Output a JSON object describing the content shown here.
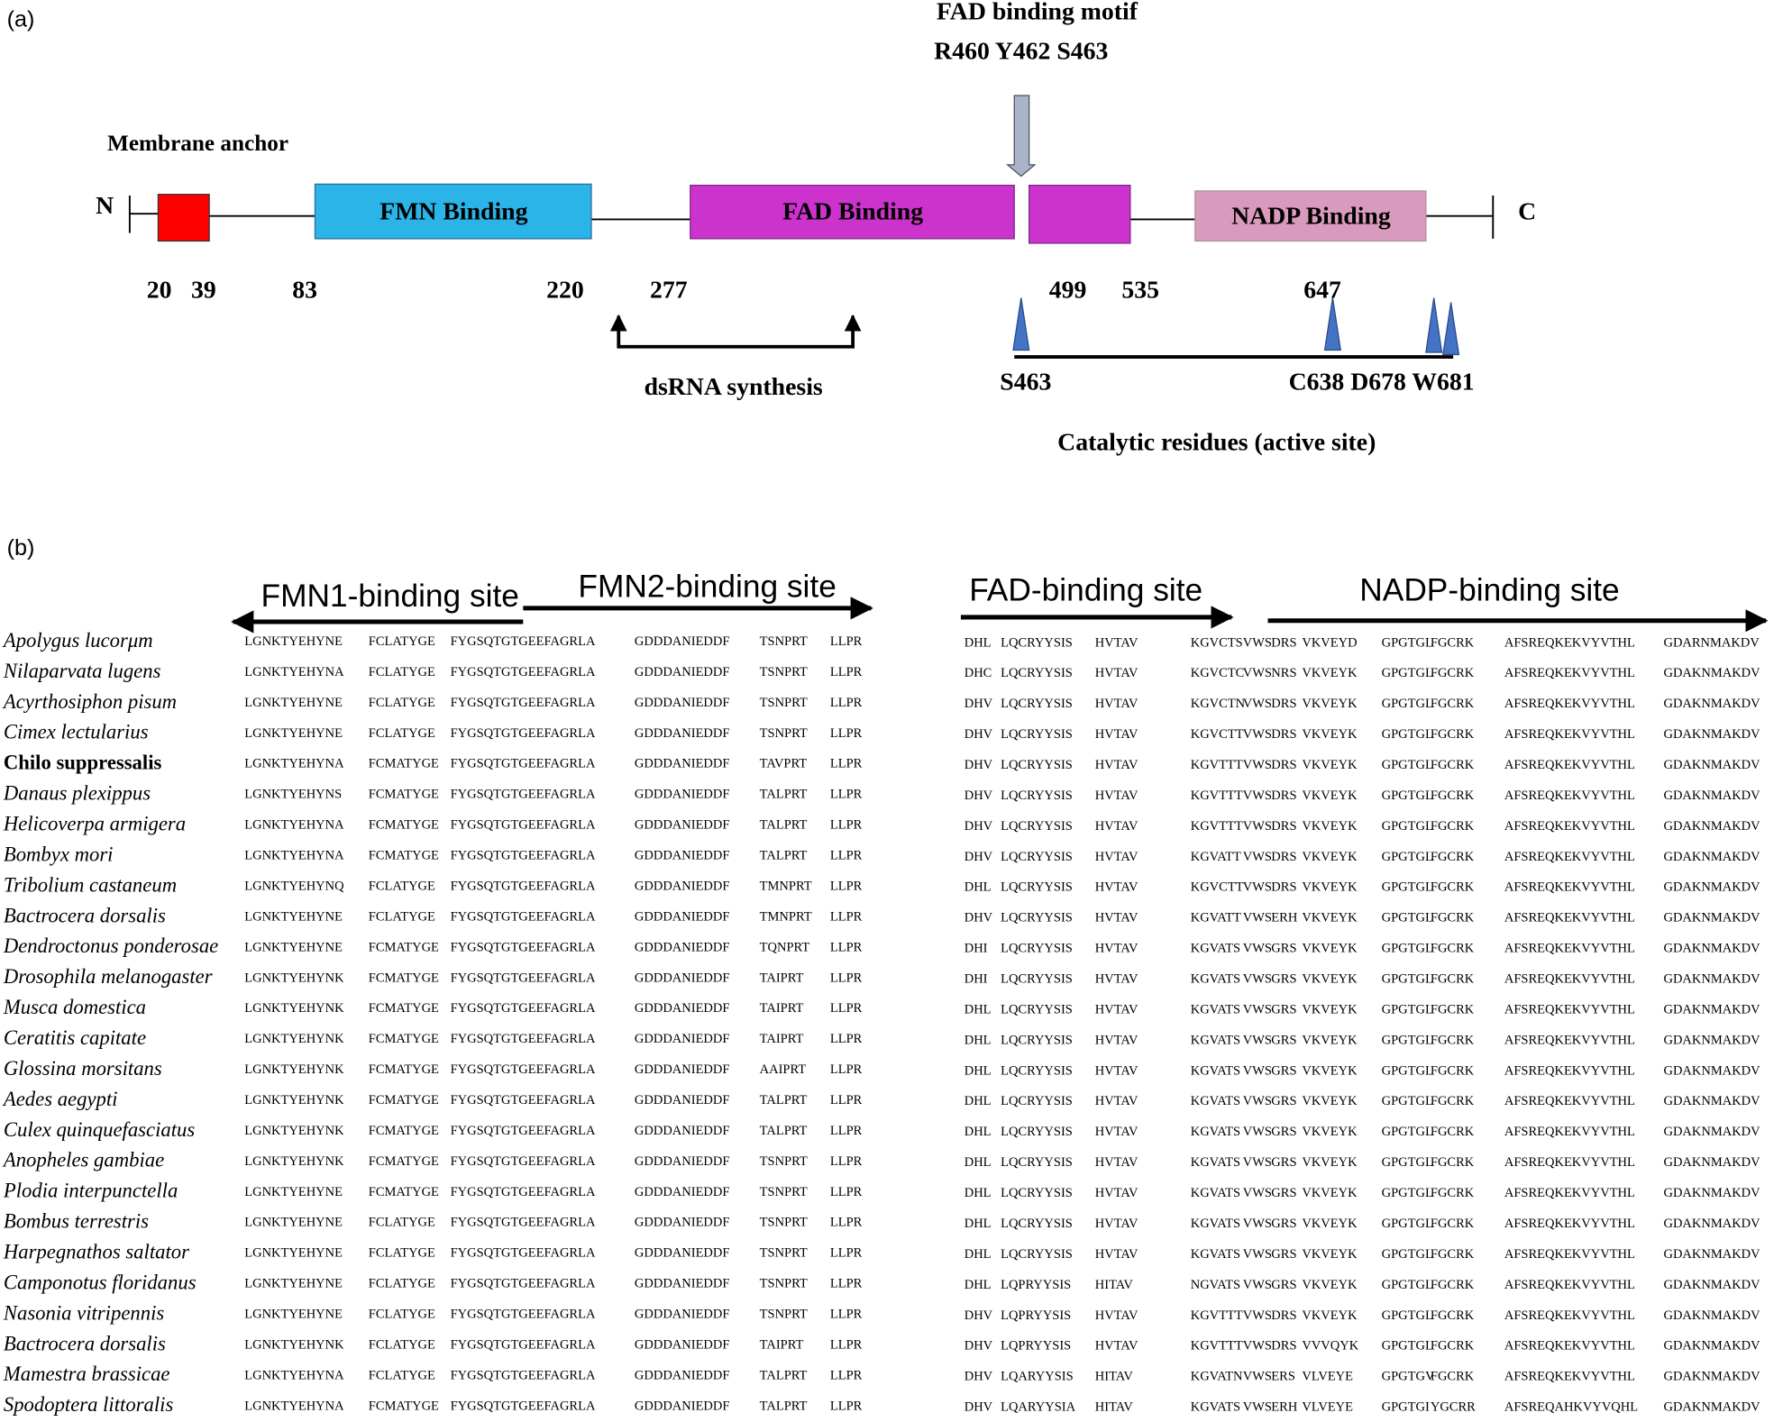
{
  "panel_a": {
    "label": "(a)",
    "motif_title": "FAD binding motif",
    "motif_residues": "R460 Y462 S463",
    "membrane_anchor": "Membrane anchor",
    "n_terminus": "N",
    "c_terminus": "C",
    "domains": [
      "FMN Binding",
      "FAD Binding",
      "NADP Binding"
    ],
    "positions": [
      20,
      39,
      83,
      220,
      277,
      499,
      535,
      647
    ],
    "dsrna": "dsRNA synthesis",
    "residue_s463": "S463",
    "residues_other": "C638 D678 W681",
    "catalytic": "Catalytic residues (active site)"
  },
  "panel_b": {
    "label": "(b)",
    "sites": [
      "FMN1-binding site",
      "FMN2-binding site",
      "FAD-binding site",
      "NADP-binding site"
    ],
    "rows": [
      {
        "species": "Apolygus lucorμm",
        "left": [
          "LGNKTYEHYNE",
          "FCLATYGE",
          "FYGSQTGTGEEFAGRLA",
          "GDDDANIEDDF",
          "TSNPRT",
          "LLPR"
        ],
        "right": [
          "DHL",
          "LQCRYYSIS",
          "HVTAV",
          "KGVCTS",
          "VWS",
          "DRS",
          "VKVEYD",
          "GPGTGL",
          "FGCRK",
          "AFSREQKEKVYVTHL",
          "GDARNMAKDV"
        ]
      },
      {
        "species": "Nilaparvata lugens",
        "left": [
          "LGNKTYEHYNA",
          "FCLATYGE",
          "FYGSQTGTGEEFAGRLA",
          "GDDDANIEDDF",
          "TSNPRT",
          "LLPR"
        ],
        "right": [
          "DHC",
          "LQCRYYSIS",
          "HVTAV",
          "KGVCTC",
          "VWS",
          "NRS",
          "VKVEYK",
          "GPGTGL",
          "FGCRK",
          "AFSREQKEKVYVTHL",
          "GDAKNMAKDV"
        ]
      },
      {
        "species": "Acyrthosiphon pisum",
        "left": [
          "LGNKTYEHYNE",
          "FCLATYGE",
          "FYGSQTGTGEEFAGRLA",
          "GDDDANIEDDF",
          "TSNPRT",
          "LLPR"
        ],
        "right": [
          "DHV",
          "LQCRYYSIS",
          "HVTAV",
          "KGVCTN",
          "VWS",
          "DRS",
          "VKVEYK",
          "GPGTGL",
          "FGCRK",
          "AFSREQKEKVYVTHL",
          "GDAKNMAKDV"
        ]
      },
      {
        "species": "Cimex lectularius",
        "left": [
          "LGNKTYEHYNE",
          "FCLATYGE",
          "FYGSQTGTGEEFAGRLA",
          "GDDDANIEDDF",
          "TSNPRT",
          "LLPR"
        ],
        "right": [
          "DHV",
          "LQCRYYSIS",
          "HVTAV",
          "KGVCTT",
          "VWS",
          "DRS",
          "VKVEYK",
          "GPGTGL",
          "FGCRK",
          "AFSREQKEKVYVTHL",
          "GDAKNMAKDV"
        ]
      },
      {
        "species": "Chilo suppressalis",
        "bold": true,
        "left": [
          "LGNKTYEHYNA",
          "FCMATYGE",
          "FYGSQTGTGEEFAGRLA",
          "GDDDANIEDDF",
          "TAVPRT",
          "LLPR"
        ],
        "right": [
          "DHV",
          "LQCRYYSIS",
          "HVTAV",
          "KGVTTT",
          "VWS",
          "DRS",
          "VKVEYK",
          "GPGTGL",
          "FGCRK",
          "AFSREQKEKVYVTHL",
          "GDAKNMAKDV"
        ]
      },
      {
        "species": "Danaus plexippus",
        "left": [
          "LGNKTYEHYNS",
          "FCMATYGE",
          "FYGSQTGTGEEFAGRLA",
          "GDDDANIEDDF",
          "TALPRT",
          "LLPR"
        ],
        "right": [
          "DHV",
          "LQCRYYSIS",
          "HVTAV",
          "KGVTTT",
          "VWS",
          "DRS",
          "VKVEYK",
          "GPGTGL",
          "FGCRK",
          "AFSREQKEKVYVTHL",
          "GDAKNMAKDV"
        ]
      },
      {
        "species": "Helicoverpa armigera",
        "left": [
          "LGNKTYEHYNA",
          "FCMATYGE",
          "FYGSQTGTGEEFAGRLA",
          "GDDDANIEDDF",
          "TALPRT",
          "LLPR"
        ],
        "right": [
          "DHV",
          "LQCRYYSIS",
          "HVTAV",
          "KGVTTT",
          "VWS",
          "DRS",
          "VKVEYK",
          "GPGTGL",
          "FGCRK",
          "AFSREQKEKVYVTHL",
          "GDAKNMAKDV"
        ]
      },
      {
        "species": "Bombyx mori",
        "left": [
          "LGNKTYEHYNA",
          "FCMATYGE",
          "FYGSQTGTGEEFAGRLA",
          "GDDDANIEDDF",
          "TALPRT",
          "LLPR"
        ],
        "right": [
          "DHV",
          "LQCRYYSIS",
          "HVTAV",
          "KGVATT",
          "VWS",
          "DRS",
          "VKVEYK",
          "GPGTGL",
          "FGCRK",
          "AFSREQKEKVYVTHL",
          "GDAKNMAKDV"
        ]
      },
      {
        "species": "Tribolium castaneum",
        "left": [
          "LGNKTYEHYNQ",
          "FCLATYGE",
          "FYGSQTGTGEEFAGRLA",
          "GDDDANIEDDF",
          "TMNPRT",
          "LLPR"
        ],
        "right": [
          "DHL",
          "LQCRYYSIS",
          "HVTAV",
          "KGVCTT",
          "VWS",
          "DRS",
          "VKVEYK",
          "GPGTGL",
          "FGCRK",
          "AFSREQKEKVYVTHL",
          "GDAKNMAKDV"
        ]
      },
      {
        "species": "Bactrocera dorsalis",
        "left": [
          "LGNKTYEHYNE",
          "FCLATYGE",
          "FYGSQTGTGEEFAGRLA",
          "GDDDANIEDDF",
          "TMNPRT",
          "LLPR"
        ],
        "right": [
          "DHV",
          "LQCRYYSIS",
          "HVTAV",
          "KGVATT",
          "VWS",
          "ERH",
          "VKVEYK",
          "GPGTGL",
          "FGCRK",
          "AFSREQKEKVYVTHL",
          "GDAKNMAKDV"
        ]
      },
      {
        "species": "Dendroctonus ponderosae",
        "left": [
          "LGNKTYEHYNE",
          "FCMATYGE",
          "FYGSQTGTGEEFAGRLA",
          "GDDDANIEDDF",
          "TQNPRT",
          "LLPR"
        ],
        "right": [
          "DHI",
          "LQCRYYSIS",
          "HVTAV",
          "KGVATS",
          "VWS",
          "GRS",
          "VKVEYK",
          "GPGTGL",
          "FGCRK",
          "AFSREQKEKVYVTHL",
          "GDAKNMAKDV"
        ]
      },
      {
        "species": "Drosophila melanogaster",
        "left": [
          "LGNKTYEHYNK",
          "FCMATYGE",
          "FYGSQTGTGEEFAGRLA",
          "GDDDANIEDDF",
          "TAIPRT",
          "LLPR"
        ],
        "right": [
          "DHI",
          "LQCRYYSIS",
          "HVTAV",
          "KGVATS",
          "VWS",
          "GRS",
          "VKVEYK",
          "GPGTGL",
          "FGCRK",
          "AFSREQKEKVYVTHL",
          "GDAKNMAKDV"
        ]
      },
      {
        "species": "Musca domestica",
        "left": [
          "LGNKTYEHYNK",
          "FCMATYGE",
          "FYGSQTGTGEEFAGRLA",
          "GDDDANIEDDF",
          "TAIPRT",
          "LLPR"
        ],
        "right": [
          "DHL",
          "LQCRYYSIS",
          "HVTAV",
          "KGVATS",
          "VWS",
          "GRS",
          "VKVEYK",
          "GPGTGL",
          "FGCRK",
          "AFSREQKEKVYVTHL",
          "GDAKNMAKDV"
        ]
      },
      {
        "species": "Ceratitis capitate",
        "left": [
          "LGNKTYEHYNK",
          "FCMATYGE",
          "FYGSQTGTGEEFAGRLA",
          "GDDDANIEDDF",
          "TAIPRT",
          "LLPR"
        ],
        "right": [
          "DHL",
          "LQCRYYSIS",
          "HVTAV",
          "KGVATS",
          "VWS",
          "GRS",
          "VKVEYK",
          "GPGTGL",
          "FGCRK",
          "AFSREQKEKVYVTHL",
          "GDAKNMAKDV"
        ]
      },
      {
        "species": "Glossina morsitans",
        "left": [
          "LGNKTYEHYNK",
          "FCMATYGE",
          "FYGSQTGTGEEFAGRLA",
          "GDDDANIEDDF",
          "AAIPRT",
          "LLPR"
        ],
        "right": [
          "DHL",
          "LQCRYYSIS",
          "HVTAV",
          "KGVATS",
          "VWS",
          "GRS",
          "VKVEYK",
          "GPGTGL",
          "FGCRK",
          "AFSREQKEKVYVTHL",
          "GDAKNMAKDV"
        ]
      },
      {
        "species": "Aedes aegypti",
        "left": [
          "LGNKTYEHYNK",
          "FCMATYGE",
          "FYGSQTGTGEEFAGRLA",
          "GDDDANIEDDF",
          "TALPRT",
          "LLPR"
        ],
        "right": [
          "DHL",
          "LQCRYYSIS",
          "HVTAV",
          "KGVATS",
          "VWS",
          "GRS",
          "VKVEYK",
          "GPGTGL",
          "FGCRK",
          "AFSREQKEKVYVTHL",
          "GDAKNMAKDV"
        ]
      },
      {
        "species": "Culex quinquefasciatus",
        "left": [
          "LGNKTYEHYNK",
          "FCMATYGE",
          "FYGSQTGTGEEFAGRLA",
          "GDDDANIEDDF",
          "TALPRT",
          "LLPR"
        ],
        "right": [
          "DHL",
          "LQCRYYSIS",
          "HVTAV",
          "KGVATS",
          "VWS",
          "GRS",
          "VKVEYK",
          "GPGTGL",
          "FGCRK",
          "AFSREQKEKVYVTHL",
          "GDAKNMAKDV"
        ]
      },
      {
        "species": "Anopheles gambiae",
        "left": [
          "LGNKTYEHYNK",
          "FCMATYGE",
          "FYGSQTGTGEEFAGRLA",
          "GDDDANIEDDF",
          "TSNPRT",
          "LLPR"
        ],
        "right": [
          "DHL",
          "LQCRYYSIS",
          "HVTAV",
          "KGVATS",
          "VWS",
          "GRS",
          "VKVEYK",
          "GPGTGL",
          "FGCRK",
          "AFSREQKEKVYVTHL",
          "GDAKNMAKDV"
        ]
      },
      {
        "species": "Plodia interpunctella",
        "left": [
          "LGNKTYEHYNE",
          "FCMATYGE",
          "FYGSQTGTGEEFAGRLA",
          "GDDDANIEDDF",
          "TSNPRT",
          "LLPR"
        ],
        "right": [
          "DHL",
          "LQCRYYSIS",
          "HVTAV",
          "KGVATS",
          "VWS",
          "GRS",
          "VKVEYK",
          "GPGTGL",
          "FGCRK",
          "AFSREQKEKVYVTHL",
          "GDAKNMAKDV"
        ]
      },
      {
        "species": "Bombus terrestris",
        "left": [
          "LGNKTYEHYNE",
          "FCLATYGE",
          "FYGSQTGTGEEFAGRLA",
          "GDDDANIEDDF",
          "TSNPRT",
          "LLPR"
        ],
        "right": [
          "DHL",
          "LQCRYYSIS",
          "HVTAV",
          "KGVATS",
          "VWS",
          "GRS",
          "VKVEYK",
          "GPGTGL",
          "FGCRK",
          "AFSREQKEKVYVTHL",
          "GDAKNMAKDV"
        ]
      },
      {
        "species": "Harpegnathos saltator",
        "left": [
          "LGNKTYEHYNE",
          "FCLATYGE",
          "FYGSQTGTGEEFAGRLA",
          "GDDDANIEDDF",
          "TSNPRT",
          "LLPR"
        ],
        "right": [
          "DHL",
          "LQCRYYSIS",
          "HVTAV",
          "KGVATS",
          "VWS",
          "GRS",
          "VKVEYK",
          "GPGTGL",
          "FGCRK",
          "AFSREQKEKVYVTHL",
          "GDAKNMAKDV"
        ]
      },
      {
        "species": "Camponotus floridanus",
        "left": [
          "LGNKTYEHYNE",
          "FCLATYGE",
          "FYGSQTGTGEEFAGRLA",
          "GDDDANIEDDF",
          "TSNPRT",
          "LLPR"
        ],
        "right": [
          "DHL",
          "LQPRYYSIS",
          "HITAV",
          "NGVATS",
          "VWS",
          "GRS",
          "VKVEYK",
          "GPGTGL",
          "FGCRK",
          "AFSREQKEKVYVTHL",
          "GDAKNMAKDV"
        ]
      },
      {
        "species": "Nasonia vitripennis",
        "left": [
          "LGNKTYEHYNE",
          "FCLATYGE",
          "FYGSQTGTGEEFAGRLA",
          "GDDDANIEDDF",
          "TSNPRT",
          "LLPR"
        ],
        "right": [
          "DHV",
          "LQPRYYSIS",
          "HVTAV",
          "KGVTTT",
          "VWS",
          "DRS",
          "VKVEYK",
          "GPGTGL",
          "FGCRK",
          "AFSREQKEKVYVTHL",
          "GDAKNMAKDV"
        ]
      },
      {
        "species": "Bactrocera dorsalis",
        "left": [
          "LGNKTYEHYNK",
          "FCLATYGE",
          "FYGSQTGTGEEFAGRLA",
          "GDDDANIEDDF",
          "TAIPRT",
          "LLPR"
        ],
        "right": [
          "DHV",
          "LQPRYYSIS",
          "HVTAV",
          "KGVTTT",
          "VWS",
          "DRS",
          "VVVQYK",
          "GPGTGL",
          "FGCRK",
          "AFSREQKEKVYVTHL",
          "GDAKNMAKDV"
        ]
      },
      {
        "species": "Mamestra brassicae",
        "left": [
          "LGNKTYEHYNA",
          "FCLATYGE",
          "FYGSQTGTGEEFAGRLA",
          "GDDDANIEDDF",
          "TALPRT",
          "LLPR"
        ],
        "right": [
          "DHV",
          "LQARYYSIS",
          "HITAV",
          "KGVATN",
          "VWS",
          "ERS",
          "VLVEYE",
          "GPGTGV",
          "FGCRK",
          "AFSREQKEKVYVTHL",
          "GDAKNMAKDV"
        ]
      },
      {
        "species": "Spodoptera littoralis",
        "left": [
          "LGNKTYEHYNA",
          "FCMATYGE",
          "FYGSQTGTGEEFAGRLA",
          "GDDDANIEDDF",
          "TALPRT",
          "LLPR"
        ],
        "right": [
          "DHV",
          "LQARYYSIA",
          "HITAV",
          "KGVATS",
          "VWS",
          "ERH",
          "VLVEYE",
          "GPGTGI",
          "YGCRR",
          "AFSREQAHKVYVQHL",
          "GDAKNMAKDV"
        ]
      }
    ]
  }
}
